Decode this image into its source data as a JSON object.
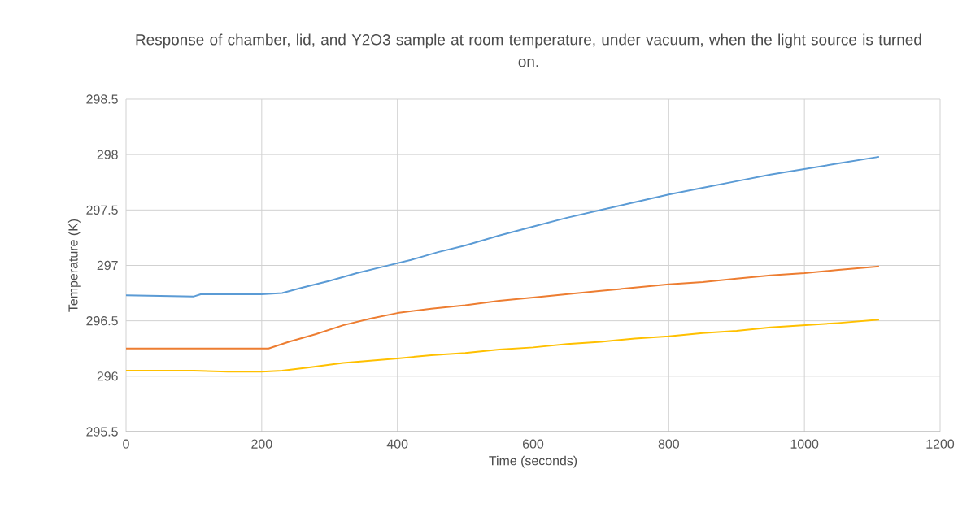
{
  "chart_data": {
    "type": "line",
    "title": "Response of chamber, lid, and Y2O3 sample at room temperature, under vacuum, when the light source is turned on.",
    "xlabel": "Time (seconds)",
    "ylabel": "Temperature (K)",
    "xlim": [
      0,
      1200
    ],
    "xticks": [
      0,
      200,
      400,
      600,
      800,
      1000,
      1200
    ],
    "ylim": [
      295.5,
      298.5
    ],
    "yticks": [
      295.5,
      296,
      296.5,
      297,
      297.5,
      298,
      298.5
    ],
    "grid": true,
    "marker": "none",
    "line_style": "solid",
    "series": [
      {
        "color": "#5b9bd5",
        "x": [
          0,
          100,
          110,
          150,
          200,
          230,
          260,
          300,
          340,
          380,
          420,
          460,
          500,
          550,
          600,
          650,
          700,
          750,
          800,
          850,
          900,
          950,
          1000,
          1050,
          1110
        ],
        "values": [
          296.73,
          296.72,
          296.74,
          296.74,
          296.74,
          296.75,
          296.8,
          296.86,
          296.93,
          296.99,
          297.05,
          297.12,
          297.18,
          297.27,
          297.35,
          297.43,
          297.5,
          297.57,
          297.64,
          297.7,
          297.76,
          297.82,
          297.87,
          297.92,
          297.98
        ]
      },
      {
        "color": "#ed7d31",
        "x": [
          0,
          100,
          150,
          210,
          240,
          280,
          320,
          360,
          400,
          450,
          500,
          550,
          600,
          650,
          700,
          750,
          800,
          850,
          900,
          950,
          1000,
          1050,
          1110
        ],
        "values": [
          296.25,
          296.25,
          296.25,
          296.25,
          296.31,
          296.38,
          296.46,
          296.52,
          296.57,
          296.61,
          296.64,
          296.68,
          296.71,
          296.74,
          296.77,
          296.8,
          296.83,
          296.85,
          296.88,
          296.91,
          296.93,
          296.96,
          296.99
        ]
      },
      {
        "color": "#ffc000",
        "x": [
          0,
          100,
          150,
          200,
          230,
          270,
          320,
          360,
          400,
          450,
          500,
          550,
          600,
          650,
          700,
          750,
          800,
          850,
          900,
          950,
          1000,
          1050,
          1110
        ],
        "values": [
          296.05,
          296.05,
          296.04,
          296.04,
          296.05,
          296.08,
          296.12,
          296.14,
          296.16,
          296.19,
          296.21,
          296.24,
          296.26,
          296.29,
          296.31,
          296.34,
          296.36,
          296.39,
          296.41,
          296.44,
          296.46,
          296.48,
          296.51
        ]
      }
    ]
  }
}
